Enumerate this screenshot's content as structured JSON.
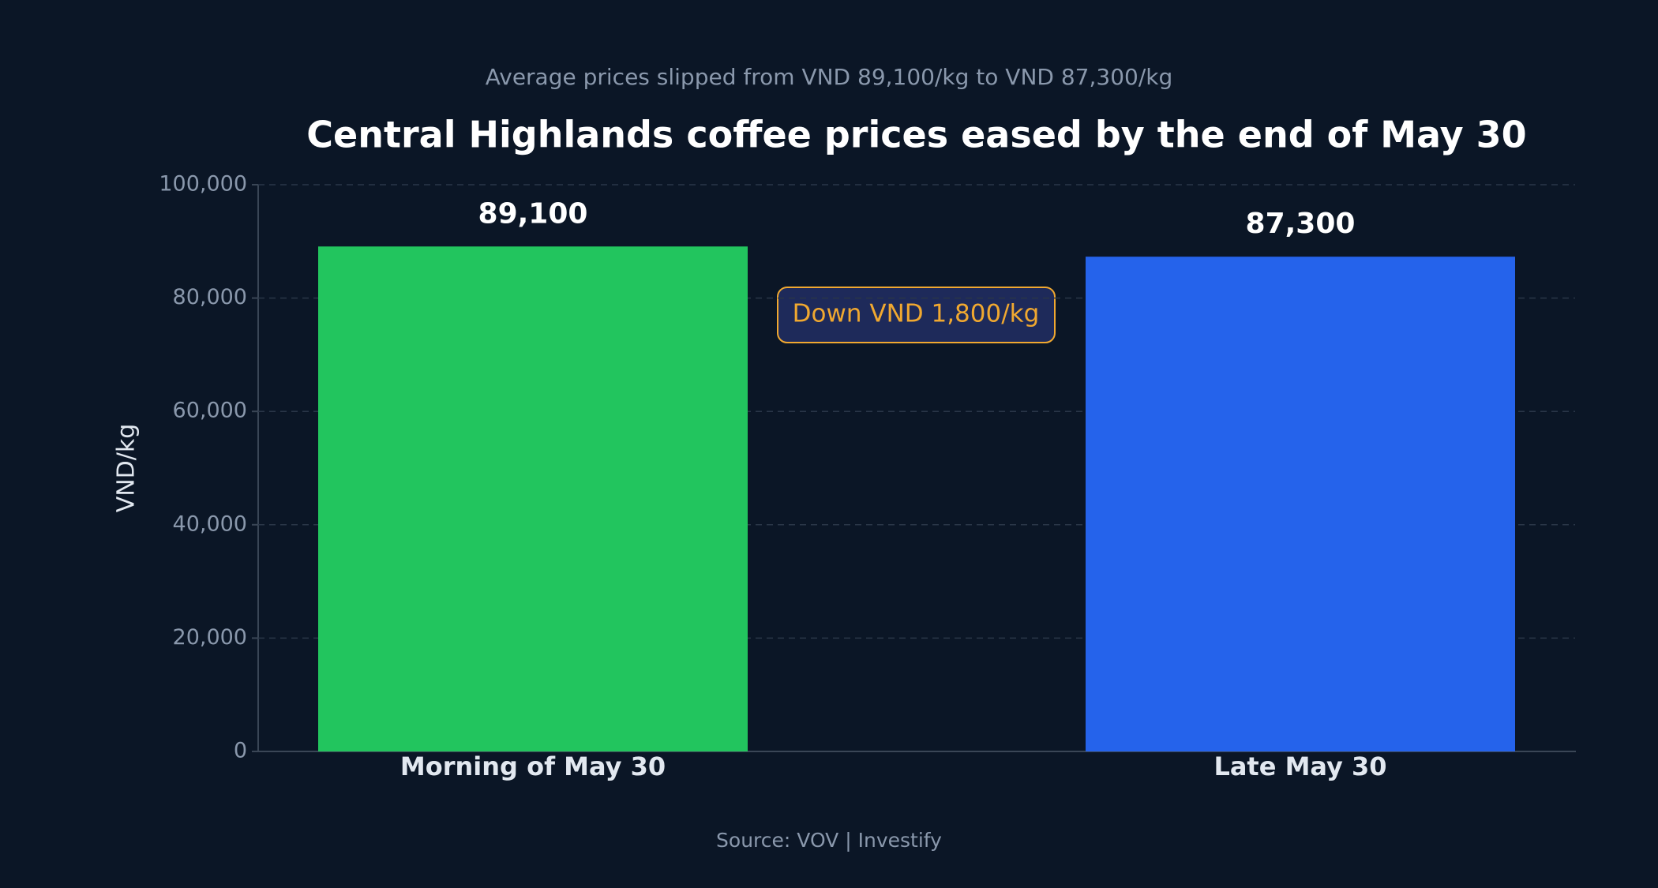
{
  "chart_data": {
    "type": "bar",
    "subtitle": "Average prices slipped from VND 89,100/kg to VND 87,300/kg",
    "title": "Central Highlands coffee prices eased by the end of May 30",
    "y_label": "VND/kg",
    "categories": [
      "Morning of May 30",
      "Late May 30"
    ],
    "values": [
      89100,
      87300
    ],
    "value_labels": [
      "89,100",
      "87,300"
    ],
    "colors": [
      "#22c55e",
      "#2563eb"
    ],
    "ylim": [
      0,
      100000
    ],
    "yticks": [
      0,
      {
        "value": 20000,
        "label": "20,000"
      },
      {
        "value": 40000,
        "label": "40,000"
      },
      {
        "value": 60000,
        "label": "60,000"
      },
      {
        "value": 80000,
        "label": "80,000"
      },
      {
        "value": 100000,
        "label": "100,000"
      }
    ],
    "grid": true,
    "annotation": "Down VND 1,800/kg",
    "source": "Source: VOV | Investify"
  }
}
